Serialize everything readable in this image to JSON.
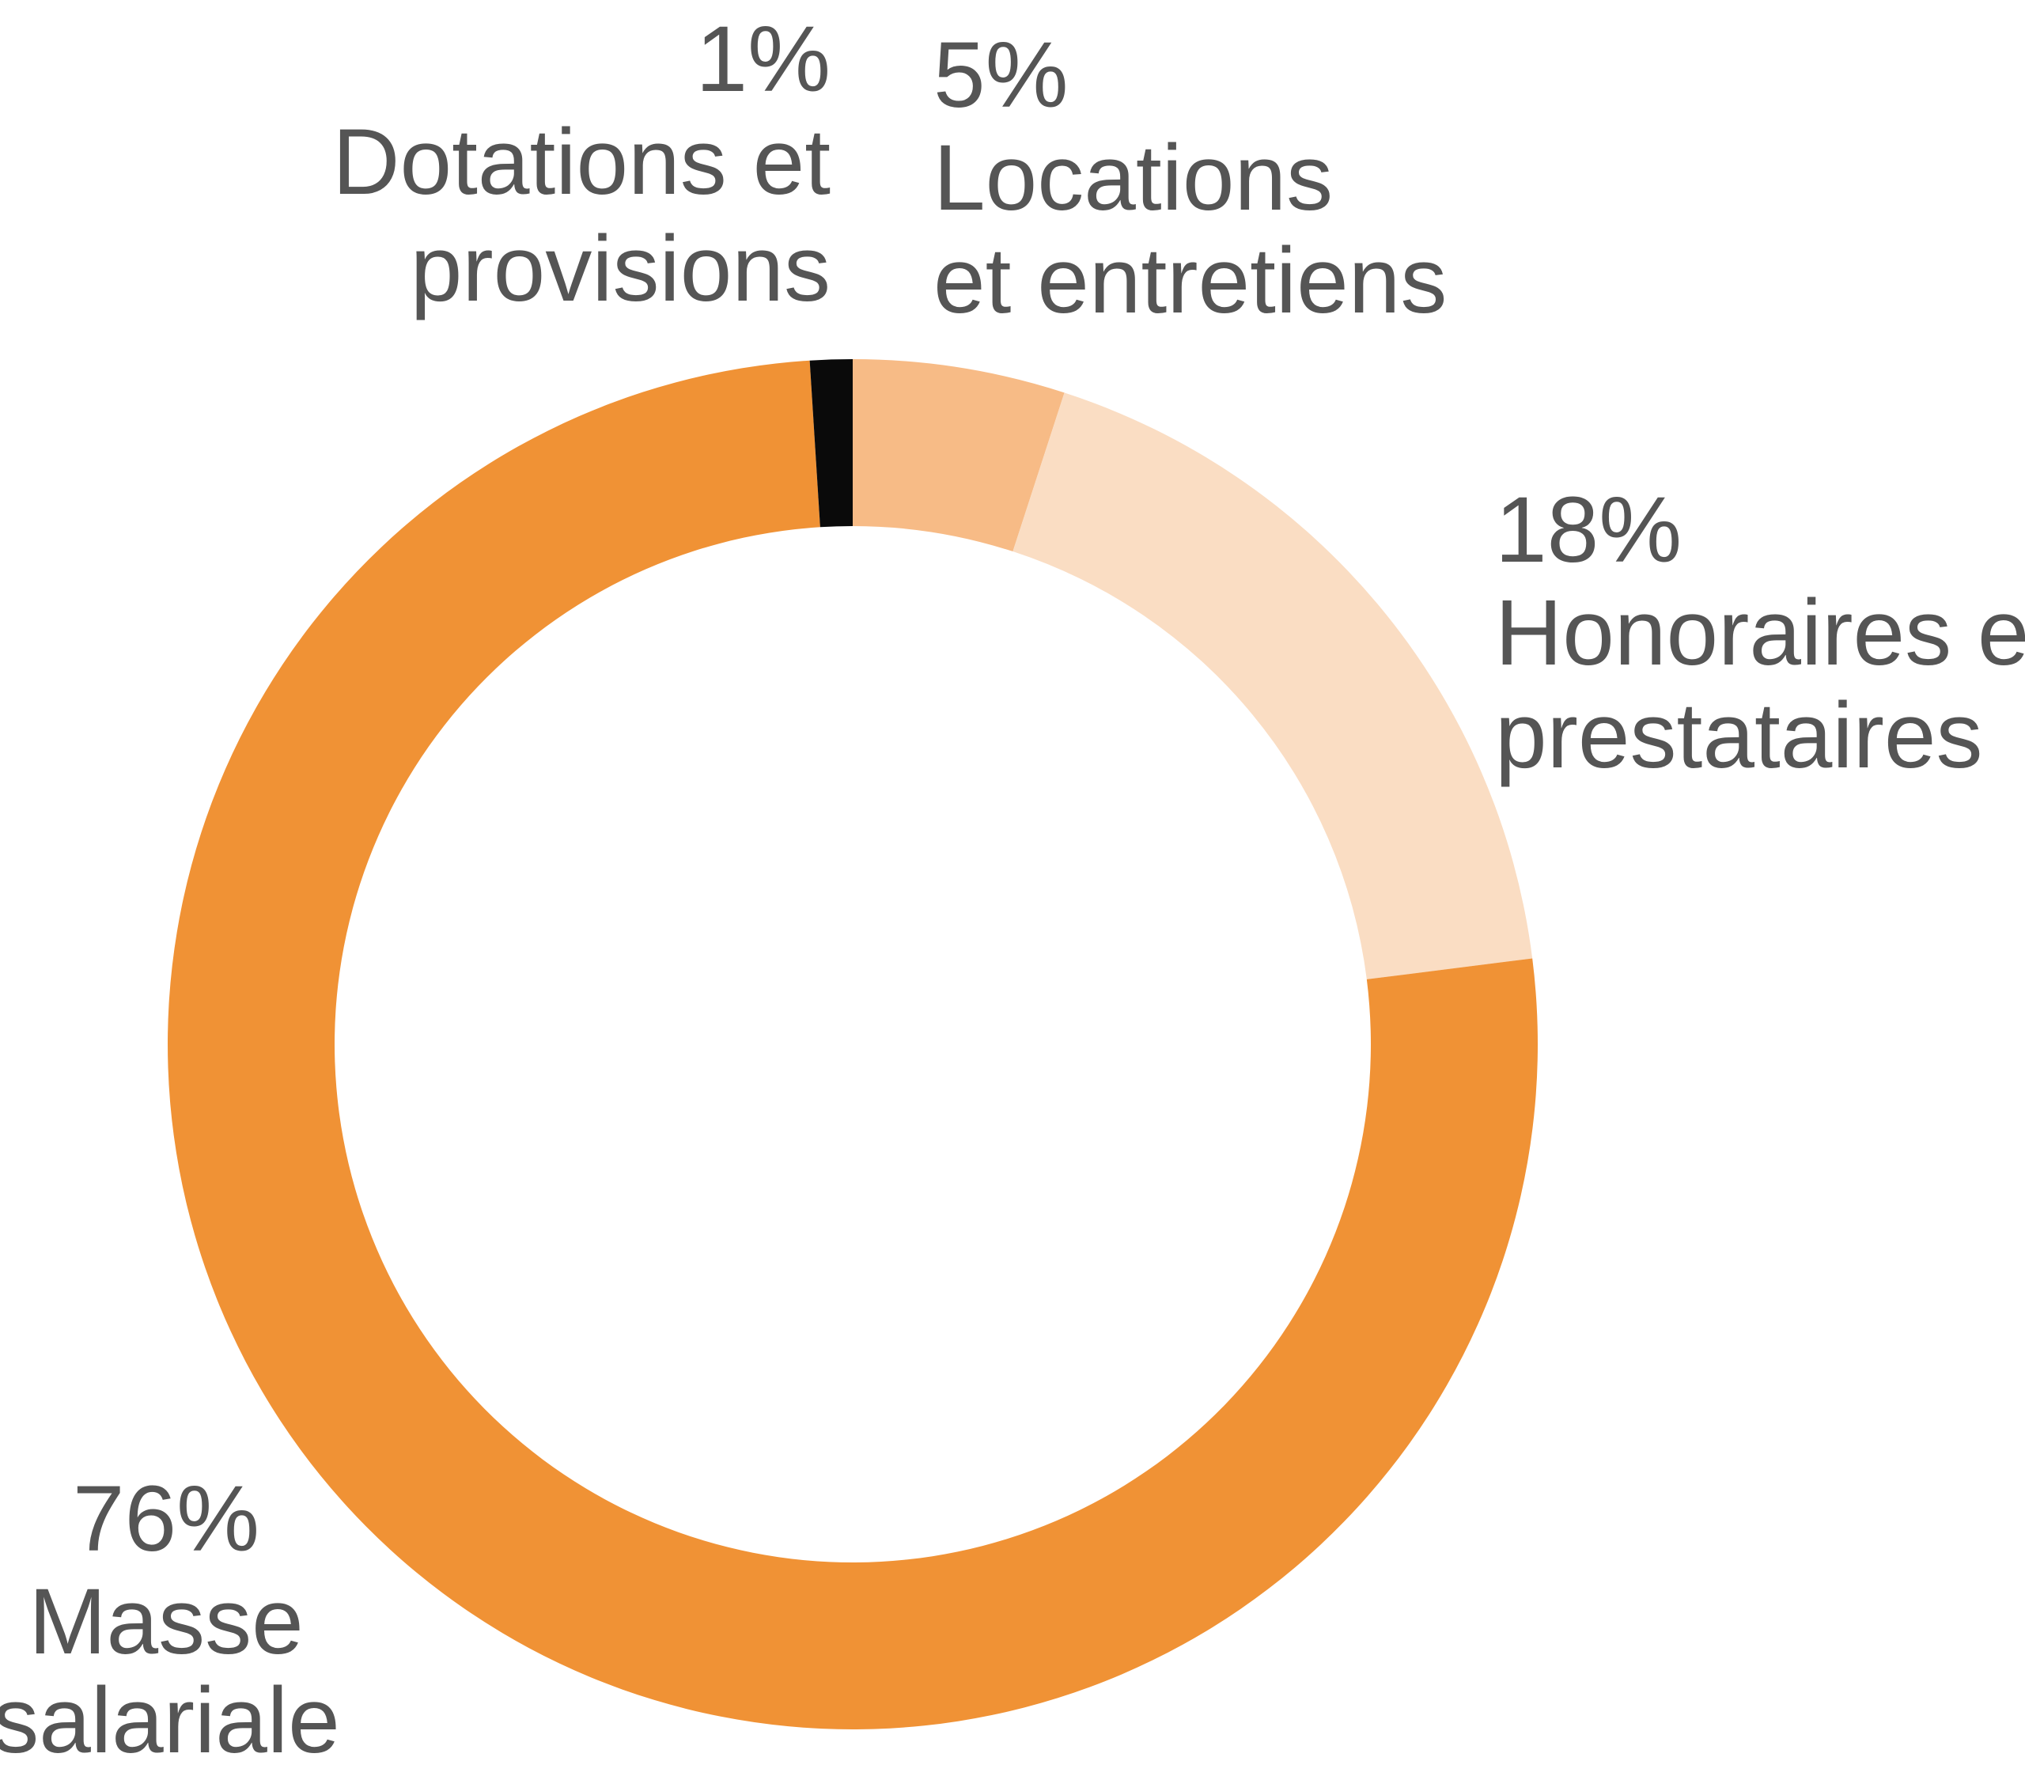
{
  "chart_data": {
    "type": "pie",
    "variant": "donut",
    "unit": "%",
    "title": "",
    "slices": [
      {
        "label_lines": [
          "Locations",
          "et entretiens"
        ],
        "value": 5,
        "value_label": "5%",
        "color": "#F7BB86"
      },
      {
        "label_lines": [
          "Honoraires et",
          "prestataires"
        ],
        "value": 18,
        "value_label": "18%",
        "color": "#FADDC3"
      },
      {
        "label_lines": [
          "Masse",
          "salariale"
        ],
        "value": 76,
        "value_label": "76%",
        "color": "#F09235"
      },
      {
        "label_lines": [
          "Dotations et",
          "provisions"
        ],
        "value": 1,
        "value_label": "1%",
        "color": "#0A0A0A"
      }
    ],
    "start_angle_deg": 0,
    "direction": "clockwise",
    "legend": "none"
  }
}
